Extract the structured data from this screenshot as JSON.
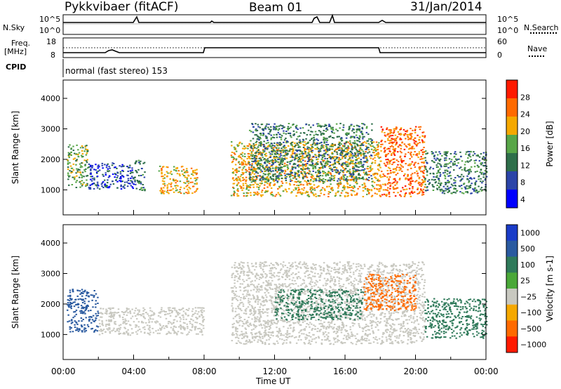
{
  "header": {
    "radar": "Pykkvibaer (fitACF)",
    "beam": "Beam 01",
    "date": "31/Jan/2014"
  },
  "strips": {
    "nsky_label": "N.Sky",
    "nsearch_label": "N.Search",
    "noise_ticks": [
      "10^5",
      "10^0"
    ],
    "freq_label": "Freq.",
    "freq_unit": "[MHz]",
    "freq_ticks": [
      "18",
      "8"
    ],
    "nave_label": "Nave",
    "nave_ticks": [
      "60",
      "0"
    ],
    "cpid_label": "CPID",
    "cpid_value": "normal (fast stereo) 153"
  },
  "chart_data": [
    {
      "type": "heatmap",
      "title": "Power",
      "ylabel": "Slant Range [km]",
      "ylim": [
        180,
        4600
      ],
      "yticks": [
        1000,
        2000,
        3000,
        4000
      ],
      "xticks": [
        "00:00",
        "04:00",
        "08:00",
        "12:00",
        "16:00",
        "20:00",
        "00:00"
      ],
      "colorbar": {
        "label": "Power [dB]",
        "ticks": [
          "28",
          "24",
          "20",
          "16",
          "12",
          "8",
          "4"
        ],
        "range": [
          0,
          30
        ],
        "colors": [
          "#0000ff",
          "#2b44a8",
          "#2e6e4a",
          "#58a648",
          "#f5a800",
          "#ff6a00",
          "#ff1a00"
        ]
      },
      "regions": [
        {
          "t": [
            0.2,
            1.4
          ],
          "r": [
            1100,
            2500
          ],
          "p": 14
        },
        {
          "t": [
            1.4,
            4.0
          ],
          "r": [
            1050,
            1900
          ],
          "p": 6
        },
        {
          "t": [
            4.0,
            4.6
          ],
          "r": [
            1000,
            2000
          ],
          "p": 8
        },
        {
          "t": [
            5.4,
            7.6
          ],
          "r": [
            900,
            1800
          ],
          "p": 18
        },
        {
          "t": [
            9.5,
            18.0
          ],
          "r": [
            800,
            2600
          ],
          "p": 22
        },
        {
          "t": [
            10.5,
            17.5
          ],
          "r": [
            1300,
            3200
          ],
          "p": 10
        },
        {
          "t": [
            18.0,
            20.5
          ],
          "r": [
            800,
            3100
          ],
          "p": 26
        },
        {
          "t": [
            20.5,
            24.0
          ],
          "r": [
            900,
            2300
          ],
          "p": 12
        }
      ]
    },
    {
      "type": "heatmap",
      "title": "Velocity",
      "ylabel": "Slant Range [km]",
      "xlabel": "Time UT",
      "ylim": [
        180,
        4600
      ],
      "yticks": [
        1000,
        2000,
        3000,
        4000
      ],
      "xticks": [
        "00:00",
        "04:00",
        "08:00",
        "12:00",
        "16:00",
        "20:00",
        "00:00"
      ],
      "colorbar": {
        "label": "Velocity [m s-1]",
        "ticks": [
          "1000",
          "500",
          "100",
          "25",
          "−25",
          "−100",
          "−500",
          "−1000"
        ],
        "colors": [
          "#1a3cc8",
          "#2a5aa0",
          "#2f7a5a",
          "#4aa838",
          "#c8c8c0",
          "#f5a800",
          "#ff6a00",
          "#ff1a00"
        ]
      },
      "regions": [
        {
          "t": [
            0.2,
            2.0
          ],
          "r": [
            1100,
            2500
          ],
          "v": 500
        },
        {
          "t": [
            2.0,
            8.0
          ],
          "r": [
            1000,
            1900
          ],
          "v": 0
        },
        {
          "t": [
            9.5,
            20.5
          ],
          "r": [
            700,
            3400
          ],
          "v": 0
        },
        {
          "t": [
            12.0,
            17.0
          ],
          "r": [
            1500,
            2500
          ],
          "v": 100
        },
        {
          "t": [
            17.0,
            20.0
          ],
          "r": [
            1800,
            3000
          ],
          "v": -300
        },
        {
          "t": [
            20.5,
            24.0
          ],
          "r": [
            900,
            2200
          ],
          "v": 300
        }
      ]
    }
  ]
}
